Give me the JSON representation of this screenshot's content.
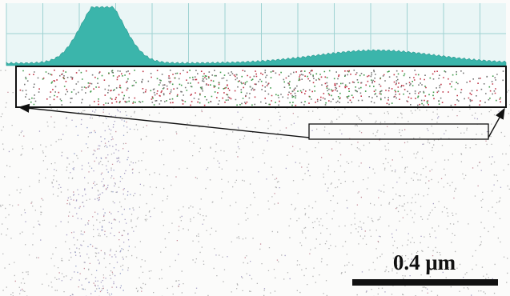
{
  "scale_bar": {
    "label": "0.4 μm"
  }
}
